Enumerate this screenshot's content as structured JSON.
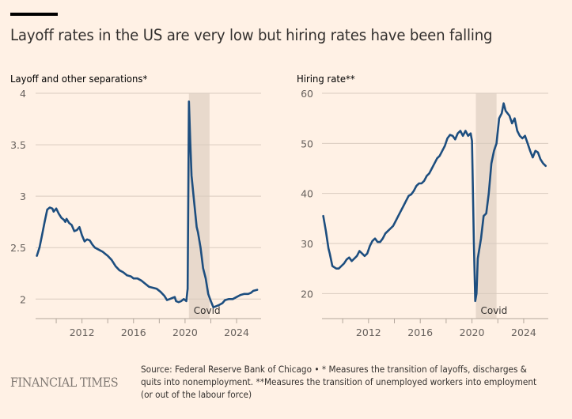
{
  "header": {
    "title": "Layoff rates in the US are very low but hiring rates have been falling"
  },
  "footer": {
    "brand": "FINANCIAL TIMES",
    "source": "Source: Federal Reserve Bank of Chicago • * Measures the transition of layoffs, discharges & quits into nonemployment. **Measures the transition of unemployed workers into employment (or out of the labour force)"
  },
  "colors": {
    "background": "#fff1e5",
    "line": "#1d4e7f",
    "gridline": "#d9cbbf",
    "shade": "#e8d9cc"
  },
  "chart_data": [
    {
      "type": "line",
      "title": "Layoff and other separations*",
      "xlabel": "",
      "ylabel": "",
      "xlim": [
        2008.4,
        2025.9
      ],
      "ylim": [
        1.81,
        4
      ],
      "yticks": [
        2,
        2.5,
        3,
        3.5,
        4
      ],
      "ytick_labels": [
        "2",
        "2.5",
        "3",
        "3.5",
        "4"
      ],
      "xticks": [
        2010,
        2012,
        2014,
        2016,
        2018,
        2020,
        2022,
        2024
      ],
      "xtick_labels": [
        "",
        "2012",
        "",
        "2016",
        "",
        "2020",
        "",
        "2024"
      ],
      "grid": true,
      "shaded_region": {
        "label": "Covid",
        "from": 2020.3,
        "to": 2021.9
      },
      "series": [
        {
          "name": "Layoff and other separations",
          "points": [
            [
              2008.5,
              2.42
            ],
            [
              2008.7,
              2.5
            ],
            [
              2008.9,
              2.62
            ],
            [
              2009.1,
              2.75
            ],
            [
              2009.3,
              2.87
            ],
            [
              2009.5,
              2.89
            ],
            [
              2009.7,
              2.88
            ],
            [
              2009.8,
              2.85
            ],
            [
              2010.0,
              2.88
            ],
            [
              2010.2,
              2.83
            ],
            [
              2010.4,
              2.79
            ],
            [
              2010.6,
              2.77
            ],
            [
              2010.7,
              2.75
            ],
            [
              2010.8,
              2.78
            ],
            [
              2011.0,
              2.74
            ],
            [
              2011.2,
              2.72
            ],
            [
              2011.4,
              2.66
            ],
            [
              2011.6,
              2.67
            ],
            [
              2011.8,
              2.7
            ],
            [
              2012.0,
              2.62
            ],
            [
              2012.2,
              2.56
            ],
            [
              2012.4,
              2.58
            ],
            [
              2012.6,
              2.57
            ],
            [
              2012.8,
              2.53
            ],
            [
              2013.0,
              2.5
            ],
            [
              2013.3,
              2.48
            ],
            [
              2013.6,
              2.46
            ],
            [
              2013.8,
              2.44
            ],
            [
              2014.0,
              2.42
            ],
            [
              2014.3,
              2.38
            ],
            [
              2014.6,
              2.32
            ],
            [
              2014.9,
              2.28
            ],
            [
              2015.2,
              2.26
            ],
            [
              2015.5,
              2.23
            ],
            [
              2015.8,
              2.22
            ],
            [
              2016.0,
              2.2
            ],
            [
              2016.3,
              2.2
            ],
            [
              2016.6,
              2.18
            ],
            [
              2016.9,
              2.15
            ],
            [
              2017.2,
              2.12
            ],
            [
              2017.5,
              2.11
            ],
            [
              2017.8,
              2.1
            ],
            [
              2018.1,
              2.07
            ],
            [
              2018.4,
              2.03
            ],
            [
              2018.6,
              1.99
            ],
            [
              2018.8,
              2.0
            ],
            [
              2019.0,
              2.01
            ],
            [
              2019.2,
              2.02
            ],
            [
              2019.3,
              1.98
            ],
            [
              2019.5,
              1.97
            ],
            [
              2019.7,
              1.98
            ],
            [
              2019.9,
              2.0
            ],
            [
              2020.1,
              1.98
            ],
            [
              2020.2,
              2.1
            ],
            [
              2020.3,
              3.92
            ],
            [
              2020.4,
              3.55
            ],
            [
              2020.5,
              3.2
            ],
            [
              2020.7,
              2.95
            ],
            [
              2020.9,
              2.7
            ],
            [
              2021.0,
              2.65
            ],
            [
              2021.2,
              2.5
            ],
            [
              2021.4,
              2.3
            ],
            [
              2021.6,
              2.2
            ],
            [
              2021.8,
              2.05
            ],
            [
              2022.0,
              1.98
            ],
            [
              2022.2,
              1.92
            ],
            [
              2022.4,
              1.93
            ],
            [
              2022.6,
              1.94
            ],
            [
              2022.9,
              1.96
            ],
            [
              2023.1,
              1.99
            ],
            [
              2023.4,
              2.0
            ],
            [
              2023.7,
              2.0
            ],
            [
              2024.0,
              2.02
            ],
            [
              2024.3,
              2.04
            ],
            [
              2024.6,
              2.05
            ],
            [
              2024.9,
              2.05
            ],
            [
              2025.1,
              2.06
            ],
            [
              2025.3,
              2.08
            ],
            [
              2025.6,
              2.09
            ]
          ]
        }
      ]
    },
    {
      "type": "line",
      "title": "Hiring rate**",
      "xlabel": "",
      "ylabel": "",
      "xlim": [
        2008.4,
        2025.9
      ],
      "ylim": [
        15,
        60
      ],
      "yticks": [
        20,
        30,
        40,
        50,
        60
      ],
      "ytick_labels": [
        "20",
        "30",
        "40",
        "50",
        "60"
      ],
      "xticks": [
        2010,
        2012,
        2014,
        2016,
        2018,
        2020,
        2022,
        2024
      ],
      "xtick_labels": [
        "",
        "2012",
        "",
        "2016",
        "",
        "2020",
        "",
        "2024"
      ],
      "grid": true,
      "shaded_region": {
        "label": "Covid",
        "from": 2020.3,
        "to": 2021.9
      },
      "series": [
        {
          "name": "Hiring rate",
          "points": [
            [
              2008.5,
              35.5
            ],
            [
              2008.7,
              32.5
            ],
            [
              2008.9,
              29
            ],
            [
              2009.0,
              28
            ],
            [
              2009.2,
              25.5
            ],
            [
              2009.5,
              25
            ],
            [
              2009.7,
              25
            ],
            [
              2009.9,
              25.5
            ],
            [
              2010.1,
              26
            ],
            [
              2010.3,
              26.8
            ],
            [
              2010.5,
              27.2
            ],
            [
              2010.7,
              26.5
            ],
            [
              2010.9,
              27
            ],
            [
              2011.1,
              27.5
            ],
            [
              2011.3,
              28.5
            ],
            [
              2011.5,
              28
            ],
            [
              2011.7,
              27.5
            ],
            [
              2011.9,
              28
            ],
            [
              2012.1,
              29.5
            ],
            [
              2012.3,
              30.5
            ],
            [
              2012.5,
              31
            ],
            [
              2012.7,
              30.3
            ],
            [
              2012.9,
              30.3
            ],
            [
              2013.1,
              31
            ],
            [
              2013.3,
              32
            ],
            [
              2013.5,
              32.5
            ],
            [
              2013.7,
              33
            ],
            [
              2013.9,
              33.5
            ],
            [
              2014.1,
              34.5
            ],
            [
              2014.3,
              35.5
            ],
            [
              2014.5,
              36.5
            ],
            [
              2014.7,
              37.5
            ],
            [
              2014.9,
              38.5
            ],
            [
              2015.1,
              39.5
            ],
            [
              2015.3,
              39.8
            ],
            [
              2015.5,
              40.5
            ],
            [
              2015.7,
              41.5
            ],
            [
              2015.9,
              42
            ],
            [
              2016.1,
              42
            ],
            [
              2016.3,
              42.5
            ],
            [
              2016.5,
              43.5
            ],
            [
              2016.7,
              44
            ],
            [
              2016.9,
              45
            ],
            [
              2017.1,
              46
            ],
            [
              2017.3,
              47
            ],
            [
              2017.5,
              47.5
            ],
            [
              2017.7,
              48.5
            ],
            [
              2017.9,
              49.5
            ],
            [
              2018.1,
              51
            ],
            [
              2018.3,
              51.7
            ],
            [
              2018.5,
              51.5
            ],
            [
              2018.7,
              50.8
            ],
            [
              2018.9,
              52
            ],
            [
              2019.1,
              52.5
            ],
            [
              2019.3,
              51.5
            ],
            [
              2019.5,
              52.5
            ],
            [
              2019.7,
              51.5
            ],
            [
              2019.9,
              52
            ],
            [
              2020.0,
              50.5
            ],
            [
              2020.15,
              30
            ],
            [
              2020.25,
              18.5
            ],
            [
              2020.35,
              20
            ],
            [
              2020.45,
              27
            ],
            [
              2020.7,
              31
            ],
            [
              2020.9,
              35.5
            ],
            [
              2021.1,
              36
            ],
            [
              2021.3,
              40
            ],
            [
              2021.5,
              46
            ],
            [
              2021.7,
              48.5
            ],
            [
              2021.9,
              50
            ],
            [
              2022.1,
              55
            ],
            [
              2022.3,
              56
            ],
            [
              2022.45,
              58
            ],
            [
              2022.6,
              56.5
            ],
            [
              2022.9,
              55.5
            ],
            [
              2023.1,
              54
            ],
            [
              2023.3,
              55
            ],
            [
              2023.5,
              52.5
            ],
            [
              2023.7,
              51.5
            ],
            [
              2023.9,
              51
            ],
            [
              2024.1,
              51.5
            ],
            [
              2024.3,
              50
            ],
            [
              2024.5,
              48.5
            ],
            [
              2024.7,
              47.2
            ],
            [
              2024.9,
              48.5
            ],
            [
              2025.1,
              48.2
            ],
            [
              2025.3,
              46.8
            ],
            [
              2025.5,
              46
            ],
            [
              2025.7,
              45.5
            ]
          ]
        }
      ]
    }
  ],
  "subtitles": [
    "Layoff and other separations*",
    "Hiring rate**"
  ],
  "covid_label": "Covid"
}
